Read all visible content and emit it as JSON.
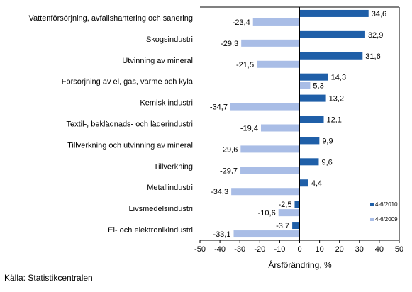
{
  "chart_data": {
    "type": "bar",
    "orientation": "horizontal",
    "categories": [
      "Vattenförsörjning, avfallshantering och sanering",
      "Skogsindustri",
      "Utvinning av mineral",
      "Försörjning av el, gas, värme och kyla",
      "Kemisk industri",
      "Textil-, beklädnads- och läderindustri",
      "Tillverkning och utvinning av mineral",
      "Tillverkning",
      "Metallindustri",
      "Livsmedelsindustri",
      "El- och elektronikindustri"
    ],
    "series": [
      {
        "name": "4-6/2010",
        "color": "#1f5fa8",
        "values": [
          34.6,
          32.9,
          31.6,
          14.3,
          13.2,
          12.1,
          9.9,
          9.6,
          4.4,
          -2.5,
          -3.7
        ],
        "labels": [
          "34,6",
          "32,9",
          "31,6",
          "14,3",
          "13,2",
          "12,1",
          "9,9",
          "9,6",
          "4,4",
          "-2,5",
          "-3,7"
        ]
      },
      {
        "name": "4-6/2009",
        "color": "#a9bde6",
        "values": [
          -23.4,
          -29.3,
          -21.5,
          5.3,
          -34.7,
          -19.4,
          -29.6,
          -29.7,
          -34.3,
          -10.6,
          -33.1
        ],
        "labels": [
          "-23,4",
          "-29,3",
          "-21,5",
          "5,3",
          "-34,7",
          "-19,4",
          "-29,6",
          "-29,7",
          "-34,3",
          "-10,6",
          "-33,1"
        ]
      }
    ],
    "xlim": [
      -50,
      50
    ],
    "xticks": [
      -50,
      -40,
      -30,
      -20,
      -10,
      0,
      10,
      20,
      30,
      40,
      50
    ],
    "xlabel": "Årsförändring, %",
    "legend_position": "bottom-right",
    "grid": false
  },
  "source": "Källa: Statistikcentralen"
}
